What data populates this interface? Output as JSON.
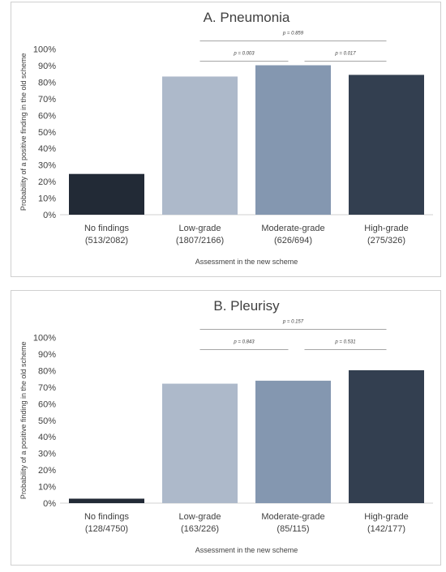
{
  "chart_data": [
    {
      "type": "bar",
      "title": "A. Pneumonia",
      "xlabel": "Assessment in the new scheme",
      "ylabel": "Probability of a positive finding in the old scheme",
      "ylim": [
        0,
        100
      ],
      "yticks": [
        "0%",
        "10%",
        "20%",
        "30%",
        "40%",
        "50%",
        "60%",
        "70%",
        "80%",
        "90%",
        "100%"
      ],
      "categories": [
        "No findings",
        "Low-grade",
        "Moderate-grade",
        "High-grade"
      ],
      "category_counts": [
        "(513/2082)",
        "(1807/2166)",
        "(626/694)",
        "(275/326)"
      ],
      "values": [
        24.6,
        83.4,
        90.2,
        84.4
      ],
      "bar_colors": [
        "#222a36",
        "#adb9ca",
        "#8497b0",
        "#333f50"
      ],
      "comparisons": [
        {
          "from": 1,
          "to": 2,
          "label": "p = 0.003"
        },
        {
          "from": 2,
          "to": 3,
          "label": "p = 0.017"
        },
        {
          "from": 1,
          "to": 3,
          "label": "p = 0.859"
        }
      ]
    },
    {
      "type": "bar",
      "title": "B. Pleurisy",
      "xlabel": "Assessment in the new scheme",
      "ylabel": "Probability of a positive finding in the old scheme",
      "ylim": [
        0,
        100
      ],
      "yticks": [
        "0%",
        "10%",
        "20%",
        "30%",
        "40%",
        "50%",
        "60%",
        "70%",
        "80%",
        "90%",
        "100%"
      ],
      "categories": [
        "No findings",
        "Low-grade",
        "Moderate-grade",
        "High-grade"
      ],
      "category_counts": [
        "(128/4750)",
        "(163/226)",
        "(85/115)",
        "(142/177)"
      ],
      "values": [
        2.7,
        72.1,
        73.9,
        80.2
      ],
      "bar_colors": [
        "#222a36",
        "#adb9ca",
        "#8497b0",
        "#333f50"
      ],
      "comparisons": [
        {
          "from": 1,
          "to": 2,
          "label": "p = 0.843"
        },
        {
          "from": 2,
          "to": 3,
          "label": "p = 0.531"
        },
        {
          "from": 1,
          "to": 3,
          "label": "p = 0.157"
        }
      ]
    }
  ]
}
